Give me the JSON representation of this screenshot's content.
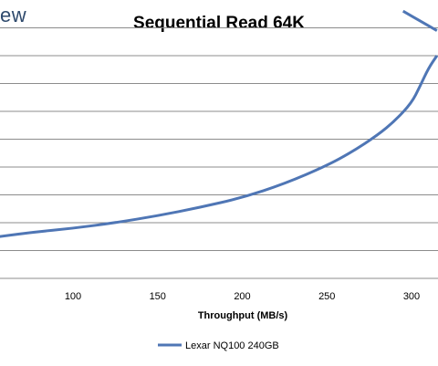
{
  "logo_text": "ew",
  "chart_data": {
    "type": "line",
    "title": "Sequential Read 64K",
    "xlabel": "Throughput (MB/s)",
    "ylabel": "",
    "x_ticks": [
      100,
      150,
      200,
      250,
      300
    ],
    "xlim": [
      50,
      315
    ],
    "ylim": [
      0,
      10
    ],
    "grid": true,
    "legend_position": "bottom",
    "series": [
      {
        "name": "Lexar NQ100 240GB",
        "color": "#4f76b5",
        "points": [
          [
            50,
            1.45
          ],
          [
            75,
            1.65
          ],
          [
            100,
            1.8
          ],
          [
            125,
            2.0
          ],
          [
            150,
            2.25
          ],
          [
            175,
            2.55
          ],
          [
            200,
            2.9
          ],
          [
            225,
            3.4
          ],
          [
            250,
            4.05
          ],
          [
            265,
            4.55
          ],
          [
            280,
            5.15
          ],
          [
            290,
            5.65
          ],
          [
            300,
            6.3
          ],
          [
            305,
            6.9
          ],
          [
            310,
            7.55
          ],
          [
            315,
            8.0
          ]
        ]
      },
      {
        "name": "Lexar NQ100 240GB",
        "color": "#4f76b5",
        "points": [
          [
            295,
            9.6
          ],
          [
            305,
            9.25
          ],
          [
            315,
            8.9
          ]
        ]
      }
    ],
    "legend": [
      "Lexar NQ100 240GB"
    ]
  }
}
